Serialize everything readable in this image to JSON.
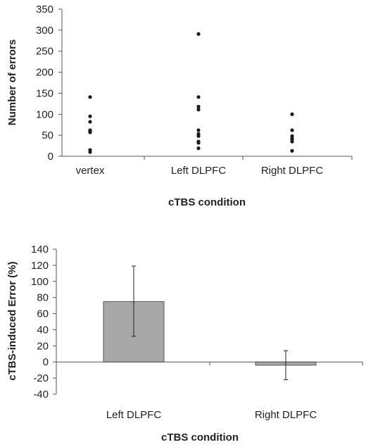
{
  "chart_data": [
    {
      "type": "scatter",
      "title": "",
      "xlabel": "cTBS  condition",
      "ylabel": "Number of errors",
      "categories": [
        "vertex",
        "Left DLPFC",
        "Right DLPFC"
      ],
      "ylim": [
        0,
        350
      ],
      "yticks": [
        0,
        50,
        100,
        150,
        200,
        250,
        300,
        350
      ],
      "grid": false,
      "marker_color": "#1a1a1a",
      "series": [
        {
          "category": "vertex",
          "values": [
            141,
            95,
            82,
            62,
            59,
            57,
            15,
            10
          ]
        },
        {
          "category": "Left DLPFC",
          "values": [
            291,
            141,
            118,
            111,
            62,
            53,
            48,
            35,
            32,
            19
          ]
        },
        {
          "category": "Right DLPFC",
          "values": [
            100,
            62,
            48,
            43,
            40,
            35,
            13
          ]
        }
      ]
    },
    {
      "type": "bar",
      "title": "",
      "xlabel": "cTBS condition",
      "ylabel": "cTBS-induced Error (%)",
      "categories": [
        "Left DLPFC",
        "Right DLPFC"
      ],
      "values": [
        75,
        -4
      ],
      "error_low": [
        32,
        -22
      ],
      "error_high": [
        119,
        14
      ],
      "ylim": [
        -40,
        140
      ],
      "yticks": [
        -40,
        -20,
        0,
        20,
        40,
        60,
        80,
        100,
        120,
        140
      ],
      "grid": false,
      "bar_color": "#a8a8a8",
      "bar_edge_color": "#555555"
    }
  ]
}
